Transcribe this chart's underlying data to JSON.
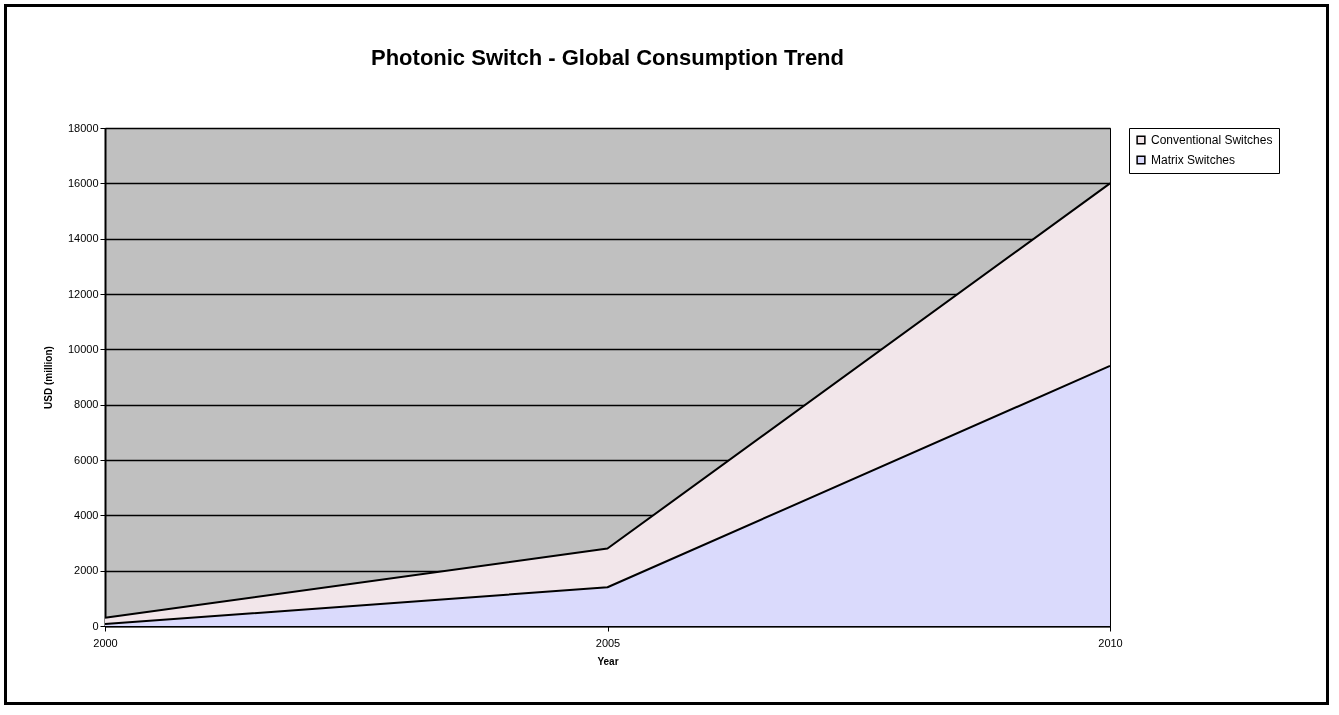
{
  "chart_data": {
    "type": "area",
    "title": "Photonic Switch - Global Consumption Trend",
    "xlabel": "Year",
    "ylabel": "USD (million)",
    "x": [
      2000,
      2005,
      2010
    ],
    "xlim": [
      2000,
      2010
    ],
    "xticks": [
      2000,
      2005,
      2010
    ],
    "ylim": [
      0,
      18000
    ],
    "yticks": [
      0,
      2000,
      4000,
      6000,
      8000,
      10000,
      12000,
      14000,
      16000,
      18000
    ],
    "stacked": true,
    "grid": "y",
    "legend": "right",
    "series": [
      {
        "name": "Matrix Switches",
        "color": "#dadafc",
        "values": [
          70,
          1400,
          9400
        ]
      },
      {
        "name": "Conventional Switches",
        "color": "#f2e6ea",
        "values": [
          230,
          1400,
          6600
        ]
      }
    ]
  }
}
